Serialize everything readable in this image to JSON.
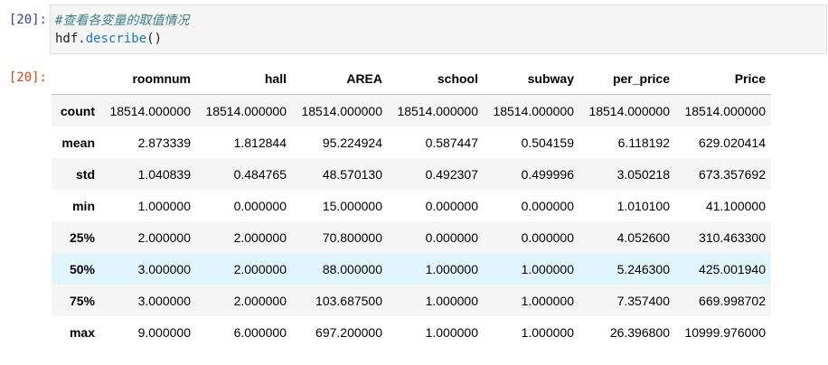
{
  "input_prompt": "[20]:",
  "output_prompt": "[20]:",
  "code": {
    "comment": "#查看各变量的取值情况",
    "object": "hdf",
    "dot": ".",
    "method": "describe",
    "parens": "()"
  },
  "table": {
    "columns": [
      "roomnum",
      "hall",
      "AREA",
      "school",
      "subway",
      "per_price",
      "Price"
    ],
    "rows": [
      {
        "label": "count",
        "values": [
          "18514.000000",
          "18514.000000",
          "18514.000000",
          "18514.000000",
          "18514.000000",
          "18514.000000",
          "18514.000000"
        ]
      },
      {
        "label": "mean",
        "values": [
          "2.873339",
          "1.812844",
          "95.224924",
          "0.587447",
          "0.504159",
          "6.118192",
          "629.020414"
        ]
      },
      {
        "label": "std",
        "values": [
          "1.040839",
          "0.484765",
          "48.570130",
          "0.492307",
          "0.499996",
          "3.050218",
          "673.357692"
        ]
      },
      {
        "label": "min",
        "values": [
          "1.000000",
          "0.000000",
          "15.000000",
          "0.000000",
          "0.000000",
          "1.010100",
          "41.100000"
        ]
      },
      {
        "label": "25%",
        "values": [
          "2.000000",
          "2.000000",
          "70.800000",
          "0.000000",
          "0.000000",
          "4.052600",
          "310.463300"
        ]
      },
      {
        "label": "50%",
        "values": [
          "3.000000",
          "2.000000",
          "88.000000",
          "1.000000",
          "1.000000",
          "5.246300",
          "425.001940"
        ]
      },
      {
        "label": "75%",
        "values": [
          "3.000000",
          "2.000000",
          "103.687500",
          "1.000000",
          "1.000000",
          "7.357400",
          "669.998702"
        ]
      },
      {
        "label": "max",
        "values": [
          "9.000000",
          "6.000000",
          "697.200000",
          "1.000000",
          "1.000000",
          "26.396800",
          "10999.976000"
        ]
      }
    ]
  }
}
